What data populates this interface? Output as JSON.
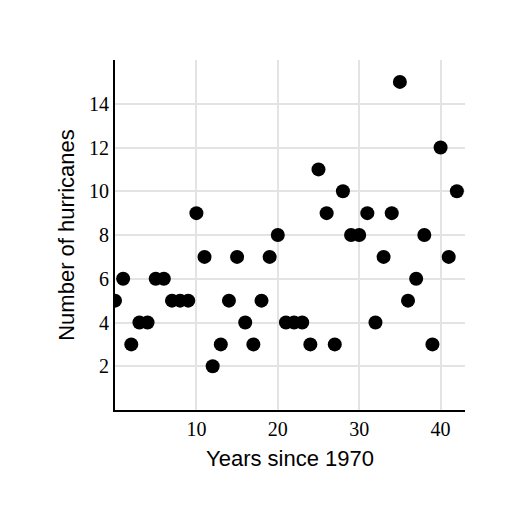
{
  "chart_data": {
    "type": "scatter",
    "x_label": "Years since 1970",
    "y_label": "Number of hurricanes",
    "x": [
      0,
      1,
      2,
      3,
      4,
      5,
      6,
      7,
      8,
      9,
      10,
      11,
      12,
      13,
      14,
      15,
      16,
      17,
      18,
      19,
      20,
      21,
      22,
      23,
      24,
      25,
      26,
      27,
      28,
      29,
      30,
      31,
      32,
      33,
      34,
      35,
      36,
      37,
      38,
      39,
      40,
      41,
      42
    ],
    "values": [
      5,
      6,
      3,
      4,
      4,
      6,
      6,
      5,
      5,
      5,
      9,
      7,
      2,
      3,
      5,
      7,
      4,
      3,
      5,
      7,
      8,
      4,
      4,
      4,
      3,
      11,
      9,
      3,
      10,
      8,
      8,
      9,
      4,
      7,
      9,
      15,
      5,
      6,
      8,
      3,
      12,
      7,
      10
    ],
    "color": "#000000",
    "marker": "circle",
    "xlim": [
      0,
      43
    ],
    "ylim": [
      0,
      16
    ],
    "xticks": [
      10,
      20,
      30,
      40
    ],
    "yticks": [
      2,
      4,
      6,
      8,
      10,
      12,
      14
    ],
    "grid": true
  }
}
